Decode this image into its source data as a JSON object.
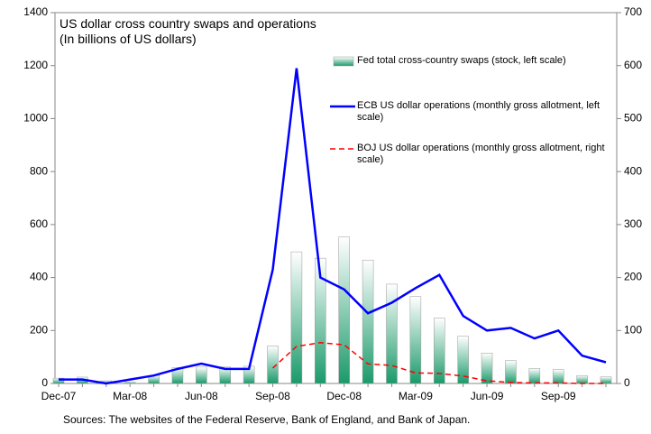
{
  "chart_data": {
    "type": "bar_line",
    "title": "US dollar cross country swaps and operations",
    "subtitle": "(In billions of US dollars)",
    "source": "Sources: The websites of the Federal Reserve,  Bank of England, and Bank of Japan.",
    "categories": [
      "Dec-07",
      null,
      null,
      "Mar-08",
      null,
      null,
      "Jun-08",
      null,
      null,
      "Sep-08",
      null,
      null,
      "Dec-08",
      null,
      null,
      "Mar-09",
      null,
      null,
      "Jun-09",
      null,
      null,
      "Sep-09",
      null,
      null
    ],
    "series": [
      {
        "name": "Fed total cross-country swaps (stock, left scale)",
        "type": "bar",
        "color": "#1a9a6a",
        "values": [
          20,
          24,
          10,
          5,
          30,
          60,
          62,
          62,
          65,
          142,
          497,
          473,
          553,
          466,
          375,
          328,
          247,
          178,
          115,
          86,
          57,
          52,
          30,
          25
        ]
      },
      {
        "name": "ECB US dollar operations (monthly gross allotment, left scale)",
        "type": "line",
        "color": "#0000ff",
        "values": [
          15,
          15,
          0,
          15,
          30,
          55,
          75,
          55,
          55,
          430,
          1190,
          400,
          355,
          265,
          305,
          360,
          410,
          255,
          200,
          210,
          170,
          200,
          105,
          80
        ]
      },
      {
        "name": "BOJ US dollar operations (monthly gross allotment, right scale)",
        "type": "line",
        "dashed": true,
        "axis": "y2",
        "color": "#ff0000",
        "values": [
          null,
          null,
          null,
          null,
          null,
          null,
          null,
          null,
          null,
          29,
          70,
          77,
          73,
          37,
          34,
          20,
          19,
          14,
          5,
          2,
          1,
          1,
          0,
          0
        ]
      }
    ],
    "ylim": [
      0,
      1400
    ],
    "yticks": [
      0,
      200,
      400,
      600,
      800,
      1000,
      1200,
      1400
    ],
    "y2lim": [
      0,
      700
    ],
    "y2ticks": [
      0,
      100,
      200,
      300,
      400,
      500,
      600,
      700
    ]
  }
}
